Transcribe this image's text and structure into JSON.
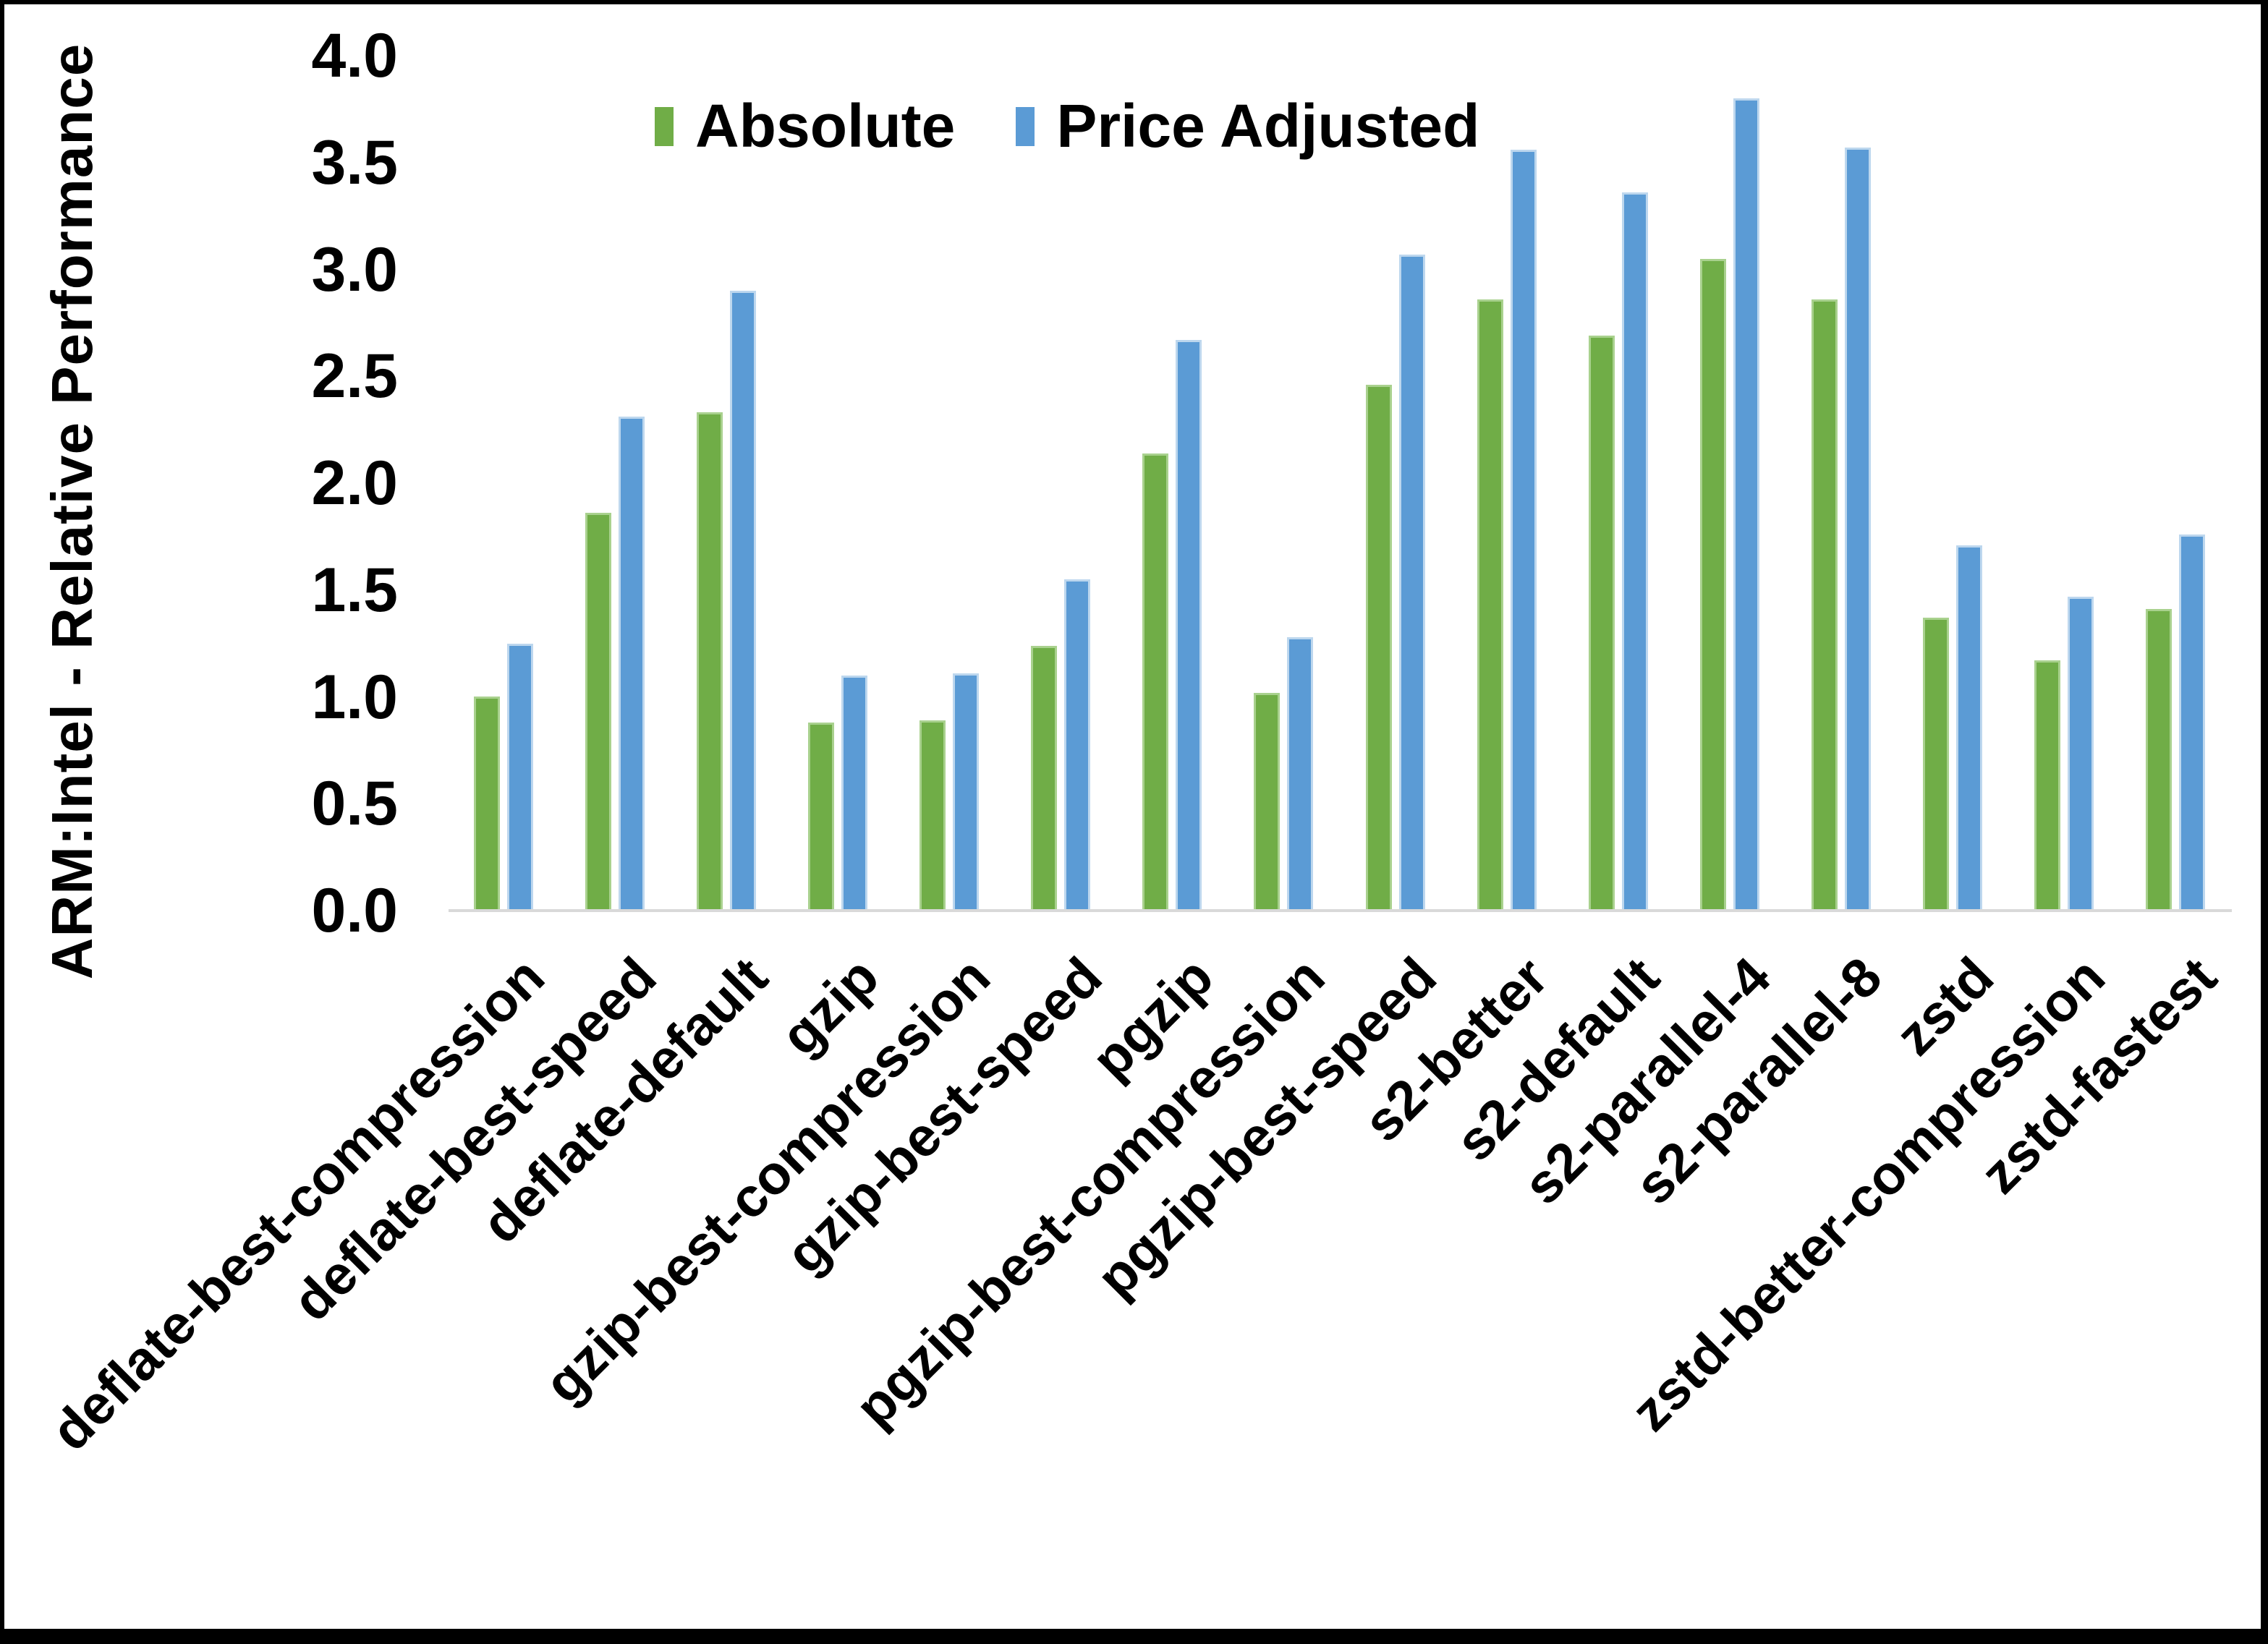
{
  "chart_data": {
    "type": "bar",
    "title": "",
    "xlabel": "",
    "ylabel": "ARM:Intel - Relative Performance",
    "ylim": [
      0.0,
      4.0
    ],
    "ytick_labels": [
      "4.0",
      "3.5",
      "3.0",
      "2.5",
      "2.0",
      "1.5",
      "1.0",
      "0.5",
      "0.0"
    ],
    "ytick_values": [
      4.0,
      3.5,
      3.0,
      2.5,
      2.0,
      1.5,
      1.0,
      0.5,
      0.0
    ],
    "grid": false,
    "legend_position": "top-center",
    "categories": [
      "deflate-best-compression",
      "deflate-best-speed",
      "deflate-default",
      "gzip",
      "gzip-best-compression",
      "gzip-best-speed",
      "pgzip",
      "pgzip-best-compression",
      "pgzip-best-speed",
      "s2-better",
      "s2-default",
      "s2-parallel-4",
      "s2-parallel-8",
      "zstd",
      "zstd-better-compression",
      "zstd-fastest"
    ],
    "series": [
      {
        "name": "Absolute",
        "color": "#70AD47",
        "edge_color": "#A9D18E",
        "values": [
          1.0,
          1.86,
          2.33,
          0.88,
          0.89,
          1.24,
          2.14,
          1.02,
          2.46,
          2.86,
          2.69,
          3.05,
          2.86,
          1.37,
          1.17,
          1.41
        ]
      },
      {
        "name": "Price Adjusted",
        "color": "#5B9BD5",
        "edge_color": "#BDD7EE",
        "values": [
          1.25,
          2.31,
          2.9,
          1.1,
          1.11,
          1.55,
          2.67,
          1.28,
          3.07,
          3.56,
          3.36,
          3.8,
          3.57,
          1.71,
          1.47,
          1.76
        ]
      }
    ]
  },
  "style": {
    "axis_line_color": "#D9D9D9",
    "frame_color": "#000000",
    "background": "#FFFFFF",
    "text_color": "#000000"
  }
}
